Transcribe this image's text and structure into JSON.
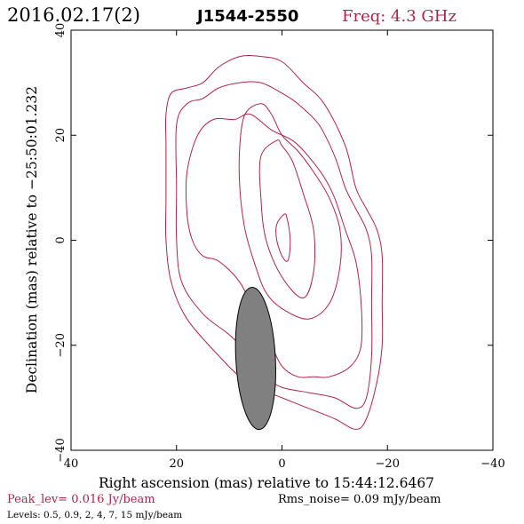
{
  "header": {
    "date_label": "2016.02.17(2)",
    "source_name": "J1544-2550",
    "freq_label": "Freq: 4.3 GHz"
  },
  "footer": {
    "peak_label": "Peak_lev=  0.016 Jy/beam",
    "rms_label": "Rms_noise= 0.09 mJy/beam",
    "levels_label": "Levels: 0.5, 0.9,   2,   4,   7,  15 mJy/beam"
  },
  "colors": {
    "contour": "#b0244a",
    "accent_text": "#b0244a",
    "beam_fill": "#808080",
    "axis": "#000000"
  },
  "chart_data": {
    "type": "contour",
    "xlabel": "Right ascension (mas) relative to 15:44:12.6467",
    "ylabel": "Declination (mas) relative to −25:50:01.232",
    "xlim": [
      40,
      -40
    ],
    "ylim": [
      -40,
      40
    ],
    "x_ticks": [
      40,
      20,
      0,
      -20,
      -40
    ],
    "x_tick_labels": [
      "40",
      "20",
      "0",
      "−20",
      "−40"
    ],
    "y_ticks": [
      -40,
      -20,
      0,
      20,
      40
    ],
    "y_tick_labels": [
      "−40",
      "−20",
      "0",
      "20",
      "40"
    ],
    "grid": false,
    "levels_mjy": [
      0.5,
      0.9,
      2,
      4,
      7,
      15
    ],
    "beam": {
      "x": 5,
      "y": -22.5,
      "major": 27,
      "minor": 7.5,
      "pa_deg": -3
    },
    "contours": [
      {
        "level": 0.5,
        "points": [
          [
            8,
            35
          ],
          [
            12,
            33
          ],
          [
            15,
            30
          ],
          [
            18,
            29
          ],
          [
            21,
            28
          ],
          [
            22,
            24
          ],
          [
            22,
            18
          ],
          [
            22,
            8
          ],
          [
            22,
            0
          ],
          [
            21,
            -8
          ],
          [
            18,
            -15
          ],
          [
            12,
            -22
          ],
          [
            8,
            -26
          ],
          [
            5,
            -28
          ],
          [
            0,
            -30
          ],
          [
            -5,
            -32
          ],
          [
            -10,
            -34
          ],
          [
            -14,
            -36
          ],
          [
            -16,
            -34
          ],
          [
            -18,
            -27
          ],
          [
            -19,
            -20
          ],
          [
            -19,
            -12
          ],
          [
            -19,
            -3
          ],
          [
            -18,
            2
          ],
          [
            -16,
            6
          ],
          [
            -14,
            10
          ],
          [
            -12,
            18
          ],
          [
            -8,
            26
          ],
          [
            -4,
            30
          ],
          [
            0,
            34
          ],
          [
            4,
            35
          ]
        ]
      },
      {
        "level": 0.9,
        "points": [
          [
            8,
            30
          ],
          [
            12,
            29
          ],
          [
            15,
            27
          ],
          [
            18,
            26
          ],
          [
            20,
            22
          ],
          [
            20,
            10
          ],
          [
            20,
            0
          ],
          [
            19,
            -8
          ],
          [
            15,
            -14
          ],
          [
            10,
            -18
          ],
          [
            6,
            -22
          ],
          [
            3,
            -26
          ],
          [
            0,
            -28
          ],
          [
            -5,
            -29
          ],
          [
            -10,
            -30
          ],
          [
            -14,
            -32
          ],
          [
            -16,
            -30
          ],
          [
            -17,
            -22
          ],
          [
            -17,
            -12
          ],
          [
            -17,
            -3
          ],
          [
            -16,
            2
          ],
          [
            -14,
            6
          ],
          [
            -12,
            10
          ],
          [
            -10,
            16
          ],
          [
            -7,
            22
          ],
          [
            -3,
            26
          ],
          [
            0,
            28
          ],
          [
            4,
            30
          ]
        ]
      },
      {
        "level": 2,
        "points": [
          [
            13,
            23
          ],
          [
            16,
            20
          ],
          [
            18,
            13
          ],
          [
            18,
            5
          ],
          [
            17,
            0
          ],
          [
            15,
            -3
          ],
          [
            12,
            -4
          ],
          [
            8,
            -8
          ],
          [
            5,
            -14
          ],
          [
            2,
            -20
          ],
          [
            0,
            -24
          ],
          [
            -3,
            -26
          ],
          [
            -6,
            -26
          ],
          [
            -9,
            -26
          ],
          [
            -13,
            -24
          ],
          [
            -15,
            -20
          ],
          [
            -15,
            -12
          ],
          [
            -14,
            -4
          ],
          [
            -12,
            2
          ],
          [
            -10,
            8
          ],
          [
            -8,
            12
          ],
          [
            -5,
            16
          ],
          [
            -2,
            19
          ],
          [
            2,
            21
          ],
          [
            6,
            24
          ],
          [
            9,
            23
          ]
        ]
      },
      {
        "level": 4,
        "points": [
          [
            4,
            26
          ],
          [
            7,
            24
          ],
          [
            8,
            18
          ],
          [
            8,
            10
          ],
          [
            7,
            2
          ],
          [
            5,
            -5
          ],
          [
            3,
            -10
          ],
          [
            0,
            -13
          ],
          [
            -5,
            -15
          ],
          [
            -9,
            -12
          ],
          [
            -11,
            -5
          ],
          [
            -11,
            2
          ],
          [
            -9,
            8
          ],
          [
            -6,
            13
          ],
          [
            -3,
            17
          ],
          [
            0,
            20
          ],
          [
            2,
            24
          ]
        ]
      },
      {
        "level": 7,
        "points": [
          [
            1,
            19
          ],
          [
            4,
            16
          ],
          [
            4,
            8
          ],
          [
            3,
            0
          ],
          [
            0,
            -7
          ],
          [
            -4,
            -11
          ],
          [
            -6,
            -6
          ],
          [
            -6,
            2
          ],
          [
            -4,
            9
          ],
          [
            -2,
            15
          ],
          [
            0,
            18
          ]
        ]
      },
      {
        "level": 15,
        "points": [
          [
            -0.5,
            5
          ],
          [
            1,
            3
          ],
          [
            1,
            0
          ],
          [
            0,
            -3
          ],
          [
            -1,
            -4
          ],
          [
            -1.5,
            -2
          ],
          [
            -1.5,
            1
          ],
          [
            -1,
            4
          ]
        ]
      }
    ]
  }
}
